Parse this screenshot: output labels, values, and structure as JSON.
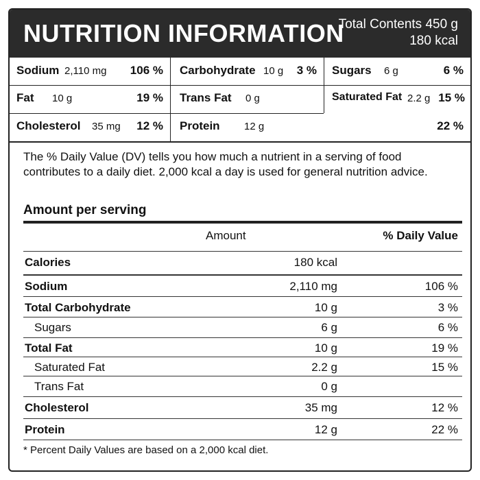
{
  "header": {
    "title": "NUTRITION INFORMATION",
    "total_contents": "Total Contents 450 g",
    "total_kcal": "180 kcal"
  },
  "summary": {
    "sodium": {
      "name": "Sodium",
      "amount": "2,110 mg",
      "pct": "106 %"
    },
    "carbohydrate": {
      "name": "Carbohydrate",
      "amount": "10 g",
      "pct": "3 %"
    },
    "sugars": {
      "name": "Sugars",
      "amount": "6 g",
      "pct": "6 %"
    },
    "fat": {
      "name": "Fat",
      "amount": "10 g",
      "pct": "19 %"
    },
    "trans_fat": {
      "name": "Trans Fat",
      "amount": "0 g"
    },
    "saturated_fat": {
      "name": "Saturated Fat",
      "amount": "2.2 g",
      "pct": "15 %"
    },
    "cholesterol": {
      "name": "Cholesterol",
      "amount": "35 mg",
      "pct": "12 %"
    },
    "protein": {
      "name": "Protein",
      "amount": "12 g",
      "pct": "22 %"
    }
  },
  "explanation": "The % Daily Value (DV) tells you how much a nutrient in a serving of food contributes to a daily diet. 2,000 kcal a day is used for general nutrition advice.",
  "amount_heading": "Amount per serving",
  "table": {
    "col_amount": "Amount",
    "col_dv": "% Daily Value",
    "rows": [
      {
        "name": "Calories",
        "amount": "180 kcal",
        "dv": ""
      },
      {
        "name": "Sodium",
        "amount": "2,110 mg",
        "dv": "106 %"
      },
      {
        "name": "Total Carbohydrate",
        "amount": "10 g",
        "dv": "3 %"
      },
      {
        "name": "Sugars",
        "amount": "6 g",
        "dv": "6 %"
      },
      {
        "name": "Total Fat",
        "amount": "10 g",
        "dv": "19 %"
      },
      {
        "name": "Saturated Fat",
        "amount": "2.2 g",
        "dv": "15 %"
      },
      {
        "name": "Trans Fat",
        "amount": "0 g",
        "dv": ""
      },
      {
        "name": "Cholesterol",
        "amount": "35 mg",
        "dv": "12 %"
      },
      {
        "name": "Protein",
        "amount": "12 g",
        "dv": "22 %"
      }
    ]
  },
  "footnote": "* Percent Daily Values are based on a 2,000 kcal diet."
}
